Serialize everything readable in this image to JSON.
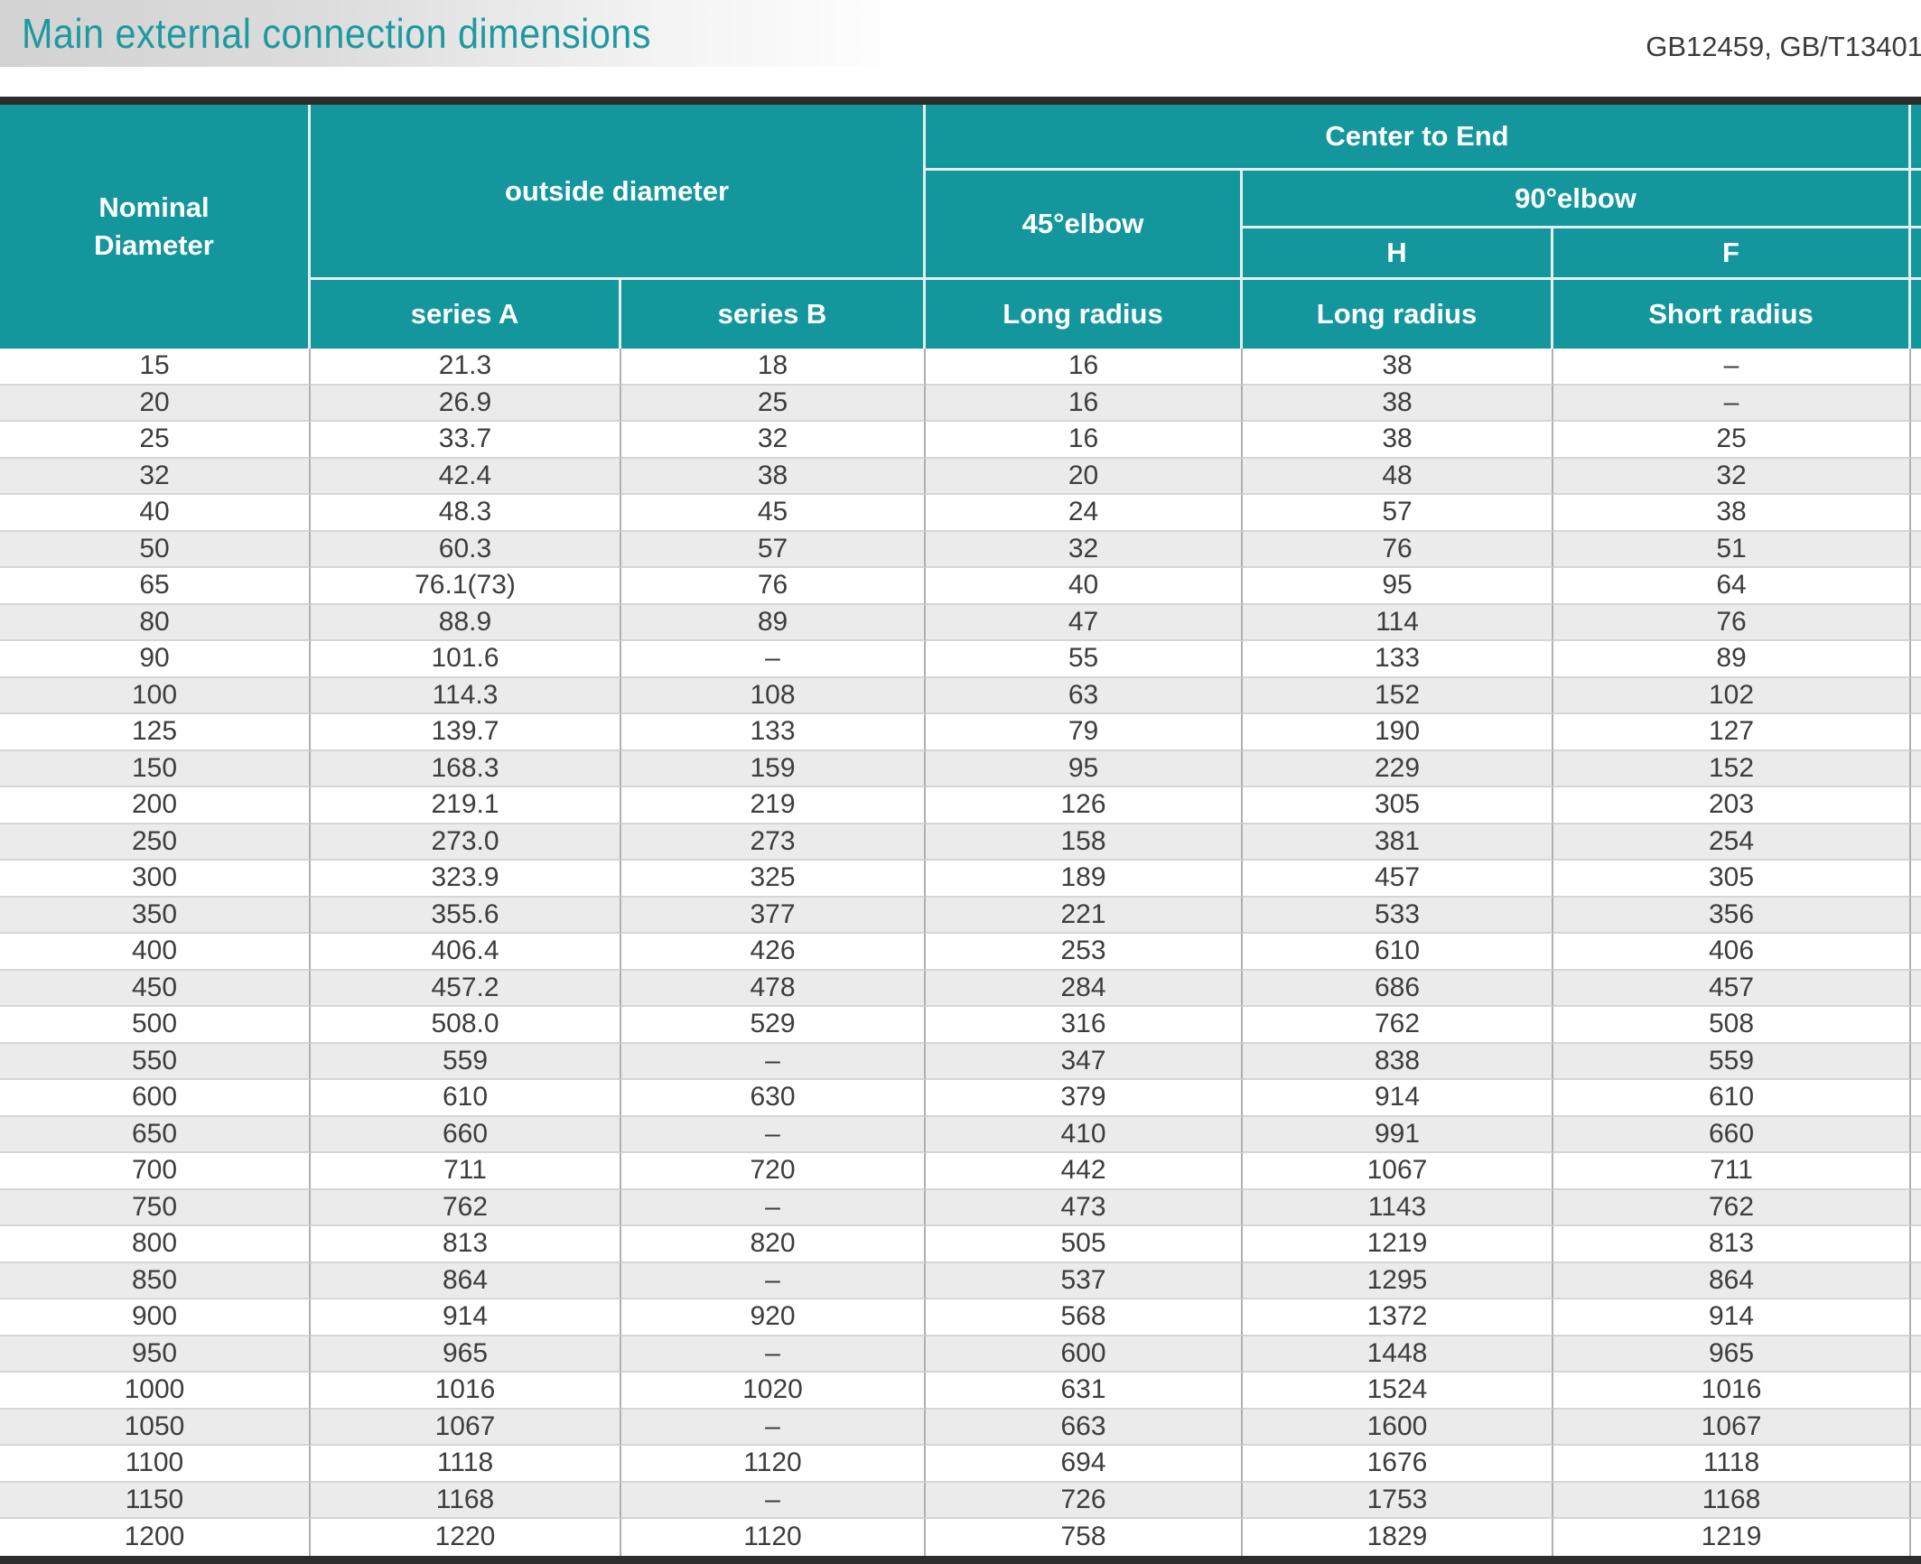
{
  "page": {
    "title": "Main external connection dimensions",
    "standards_ref": "GB12459, GB/T13401"
  },
  "colors": {
    "accent_teal": "#13979d",
    "title_text": "#1c9aa0",
    "header_text": "#ffffff",
    "dark_border": "#2d2d2d",
    "row_stripe": "#ebebeb",
    "data_text": "#3d3d3d"
  },
  "table": {
    "header": {
      "nominal_diameter": "Nominal\nDiameter",
      "outside_diameter": "outside diameter",
      "series_a": "series A",
      "series_b": "series B",
      "center_to_end": "Center to End",
      "elbow_45": "45°elbow",
      "elbow_90": "90°elbow",
      "h": "H",
      "f": "F",
      "long_radius_45": "Long radius",
      "long_radius_90h": "Long radius",
      "short_radius_90f": "Short radius"
    },
    "rows": [
      [
        "15",
        "21.3",
        "18",
        "16",
        "38",
        "–"
      ],
      [
        "20",
        "26.9",
        "25",
        "16",
        "38",
        "–"
      ],
      [
        "25",
        "33.7",
        "32",
        "16",
        "38",
        "25"
      ],
      [
        "32",
        "42.4",
        "38",
        "20",
        "48",
        "32"
      ],
      [
        "40",
        "48.3",
        "45",
        "24",
        "57",
        "38"
      ],
      [
        "50",
        "60.3",
        "57",
        "32",
        "76",
        "51"
      ],
      [
        "65",
        "76.1(73)",
        "76",
        "40",
        "95",
        "64"
      ],
      [
        "80",
        "88.9",
        "89",
        "47",
        "114",
        "76"
      ],
      [
        "90",
        "101.6",
        "–",
        "55",
        "133",
        "89"
      ],
      [
        "100",
        "114.3",
        "108",
        "63",
        "152",
        "102"
      ],
      [
        "125",
        "139.7",
        "133",
        "79",
        "190",
        "127"
      ],
      [
        "150",
        "168.3",
        "159",
        "95",
        "229",
        "152"
      ],
      [
        "200",
        "219.1",
        "219",
        "126",
        "305",
        "203"
      ],
      [
        "250",
        "273.0",
        "273",
        "158",
        "381",
        "254"
      ],
      [
        "300",
        "323.9",
        "325",
        "189",
        "457",
        "305"
      ],
      [
        "350",
        "355.6",
        "377",
        "221",
        "533",
        "356"
      ],
      [
        "400",
        "406.4",
        "426",
        "253",
        "610",
        "406"
      ],
      [
        "450",
        "457.2",
        "478",
        "284",
        "686",
        "457"
      ],
      [
        "500",
        "508.0",
        "529",
        "316",
        "762",
        "508"
      ],
      [
        "550",
        "559",
        "–",
        "347",
        "838",
        "559"
      ],
      [
        "600",
        "610",
        "630",
        "379",
        "914",
        "610"
      ],
      [
        "650",
        "660",
        "–",
        "410",
        "991",
        "660"
      ],
      [
        "700",
        "711",
        "720",
        "442",
        "1067",
        "711"
      ],
      [
        "750",
        "762",
        "–",
        "473",
        "1143",
        "762"
      ],
      [
        "800",
        "813",
        "820",
        "505",
        "1219",
        "813"
      ],
      [
        "850",
        "864",
        "–",
        "537",
        "1295",
        "864"
      ],
      [
        "900",
        "914",
        "920",
        "568",
        "1372",
        "914"
      ],
      [
        "950",
        "965",
        "–",
        "600",
        "1448",
        "965"
      ],
      [
        "1000",
        "1016",
        "1020",
        "631",
        "1524",
        "1016"
      ],
      [
        "1050",
        "1067",
        "–",
        "663",
        "1600",
        "1067"
      ],
      [
        "1100",
        "1118",
        "1120",
        "694",
        "1676",
        "1118"
      ],
      [
        "1150",
        "1168",
        "–",
        "726",
        "1753",
        "1168"
      ],
      [
        "1200",
        "1220",
        "1120",
        "758",
        "1829",
        "1219"
      ]
    ]
  }
}
